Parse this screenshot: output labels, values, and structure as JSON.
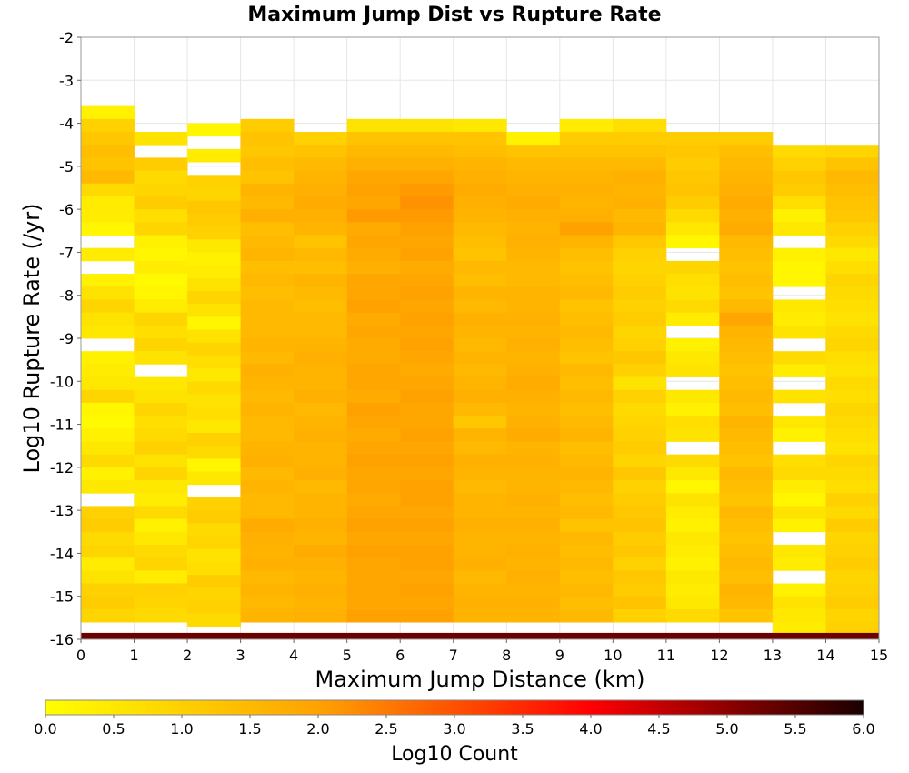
{
  "chart_data": {
    "type": "heatmap",
    "title": "Maximum Jump Dist vs Rupture Rate",
    "xlabel": "Maximum Jump Distance (km)",
    "ylabel": "Log10 Rupture Rate (/yr)",
    "xlim": [
      0,
      15
    ],
    "ylim": [
      -16,
      -2
    ],
    "x_ticks": [
      "0",
      "1",
      "2",
      "3",
      "4",
      "5",
      "6",
      "7",
      "8",
      "9",
      "10",
      "11",
      "12",
      "13",
      "14",
      "15"
    ],
    "y_ticks": [
      "-2",
      "-3",
      "-4",
      "-5",
      "-6",
      "-7",
      "-8",
      "-9",
      "-10",
      "-11",
      "-12",
      "-13",
      "-14",
      "-15",
      "-16"
    ],
    "x_bin_width_km": 1,
    "y_bin_width_log10": 0.3,
    "bin_value_meaning": "log10 count per bin; null = empty bin",
    "bins": [
      {
        "x": 0,
        "top": -3.6,
        "values_from_top": [
          0.3,
          1.0,
          1.2,
          1.4,
          1.3,
          1.5,
          0.8,
          0.4,
          0.4,
          0.2,
          null,
          0.4,
          null,
          0.3,
          0.6,
          0.9,
          0.6,
          0.5,
          null,
          0.3,
          0.4,
          0.5,
          0.9,
          0.2,
          0.1,
          0.3,
          0.5,
          0.8,
          0.3,
          0.5,
          null,
          1.0,
          1.1,
          0.8,
          0.9,
          0.4,
          0.6,
          1.0,
          1.1,
          0.9
        ]
      },
      {
        "x": 1,
        "top": -4.2,
        "values_from_top": [
          0.6,
          null,
          1.1,
          0.8,
          0.9,
          1.1,
          0.7,
          0.9,
          0.3,
          0.2,
          0.4,
          0.1,
          0.2,
          0.4,
          0.9,
          0.7,
          0.9,
          0.6,
          null,
          0.5,
          0.6,
          0.9,
          0.7,
          0.8,
          1.0,
          0.6,
          0.9,
          0.5,
          0.4,
          0.8,
          0.3,
          0.5,
          0.8,
          0.9,
          0.4,
          1.0,
          0.9,
          0.8
        ]
      },
      {
        "x": 2,
        "top": -4.0,
        "values_from_top": [
          0.2,
          null,
          0.4,
          null,
          1.0,
          0.9,
          1.2,
          1.1,
          1.0,
          0.5,
          0.3,
          0.4,
          0.6,
          0.9,
          0.6,
          0.2,
          0.6,
          0.9,
          0.7,
          0.5,
          0.8,
          0.6,
          0.7,
          0.5,
          1.0,
          0.8,
          0.2,
          0.5,
          null,
          1.0,
          1.1,
          0.8,
          0.9,
          0.6,
          0.7,
          1.1,
          0.9,
          1.0,
          0.8
        ]
      },
      {
        "x": 3,
        "top": -3.9,
        "values_from_top": [
          1.1,
          1.3,
          1.2,
          1.4,
          1.3,
          1.6,
          1.5,
          1.7,
          1.4,
          1.5,
          1.6,
          1.4,
          1.5,
          1.4,
          1.5,
          1.5,
          1.5,
          1.6,
          1.5,
          1.7,
          1.6,
          1.5,
          1.6,
          1.5,
          1.5,
          1.6,
          1.7,
          1.5,
          1.6,
          1.5,
          1.5,
          1.8,
          1.7,
          1.6,
          1.7,
          1.5,
          1.6,
          1.5,
          1.6
        ]
      },
      {
        "x": 4,
        "top": -4.2,
        "values_from_top": [
          1.0,
          1.3,
          1.5,
          1.6,
          1.7,
          1.8,
          1.7,
          1.6,
          1.3,
          1.5,
          1.4,
          1.6,
          1.5,
          1.4,
          1.5,
          1.5,
          1.6,
          1.7,
          1.6,
          1.6,
          1.7,
          1.5,
          1.6,
          1.7,
          1.6,
          1.6,
          1.7,
          1.5,
          1.6,
          1.6,
          1.7,
          1.6,
          1.8,
          1.7,
          1.6,
          1.7,
          1.6,
          1.7
        ]
      },
      {
        "x": 5,
        "top": -3.9,
        "values_from_top": [
          0.6,
          1.3,
          1.5,
          1.7,
          1.9,
          2.0,
          1.9,
          2.1,
          1.8,
          1.9,
          1.8,
          1.7,
          1.9,
          1.9,
          2.0,
          1.8,
          1.9,
          1.8,
          1.8,
          1.9,
          1.9,
          1.8,
          2.0,
          1.9,
          1.8,
          1.9,
          2.0,
          1.9,
          1.9,
          1.8,
          1.9,
          2.0,
          1.9,
          2.0,
          1.9,
          1.9,
          1.9,
          1.9,
          2.0
        ]
      },
      {
        "x": 6,
        "top": -3.9,
        "values_from_top": [
          0.6,
          1.3,
          1.5,
          1.7,
          1.9,
          2.1,
          2.2,
          2.1,
          2.0,
          1.9,
          2.0,
          1.8,
          1.9,
          2.0,
          1.9,
          2.0,
          1.9,
          2.0,
          1.9,
          1.8,
          1.9,
          2.0,
          1.9,
          1.9,
          2.0,
          1.9,
          2.0,
          1.9,
          2.0,
          2.0,
          1.9,
          2.0,
          1.9,
          2.0,
          2.0,
          1.9,
          2.0,
          1.9,
          2.0
        ]
      },
      {
        "x": 7,
        "top": -3.9,
        "values_from_top": [
          0.5,
          1.3,
          1.4,
          1.6,
          1.7,
          1.8,
          1.7,
          1.6,
          1.5,
          1.4,
          1.3,
          1.5,
          1.4,
          1.6,
          1.5,
          1.7,
          1.6,
          1.5,
          1.6,
          1.5,
          1.6,
          1.7,
          1.5,
          1.2,
          1.6,
          1.5,
          1.7,
          1.6,
          1.5,
          1.6,
          1.6,
          1.7,
          1.6,
          1.6,
          1.7,
          1.5,
          1.6,
          1.7,
          1.6
        ]
      },
      {
        "x": 8,
        "top": -4.2,
        "values_from_top": [
          0.3,
          1.3,
          1.5,
          1.6,
          1.7,
          1.8,
          1.7,
          1.6,
          1.7,
          1.6,
          1.5,
          1.5,
          1.6,
          1.6,
          1.7,
          1.6,
          1.7,
          1.6,
          1.7,
          1.8,
          1.7,
          1.6,
          1.7,
          1.8,
          1.6,
          1.7,
          1.6,
          1.6,
          1.7,
          1.6,
          1.7,
          1.6,
          1.7,
          1.6,
          1.7,
          1.6,
          1.7,
          1.6
        ]
      },
      {
        "x": 9,
        "top": -3.9,
        "values_from_top": [
          0.4,
          1.1,
          1.3,
          1.5,
          1.6,
          1.7,
          1.6,
          1.7,
          2.0,
          1.6,
          1.4,
          1.3,
          1.4,
          1.5,
          1.3,
          1.4,
          1.5,
          1.4,
          1.3,
          1.5,
          1.4,
          1.5,
          1.4,
          1.5,
          1.6,
          1.4,
          1.5,
          1.6,
          1.5,
          1.4,
          1.5,
          1.3,
          1.5,
          1.4,
          1.5,
          1.4,
          1.5,
          1.4,
          1.5
        ]
      },
      {
        "x": 10,
        "top": -3.9,
        "values_from_top": [
          0.7,
          1.1,
          1.3,
          1.5,
          1.7,
          1.6,
          1.7,
          1.5,
          1.6,
          1.2,
          1.0,
          0.9,
          1.0,
          1.1,
          1.0,
          1.1,
          0.9,
          1.0,
          1.2,
          1.0,
          0.6,
          1.0,
          0.8,
          0.9,
          1.0,
          1.1,
          0.9,
          1.2,
          1.0,
          1.1,
          1.2,
          1.3,
          1.1,
          1.2,
          1.0,
          1.2,
          1.1,
          1.3,
          1.0
        ]
      },
      {
        "x": 11,
        "top": -4.2,
        "values_from_top": [
          1.1,
          1.2,
          1.1,
          1.2,
          1.3,
          1.1,
          0.8,
          0.5,
          0.2,
          null,
          0.9,
          0.7,
          0.6,
          0.8,
          0.4,
          null,
          0.3,
          0.5,
          0.6,
          null,
          0.5,
          0.3,
          0.7,
          0.6,
          null,
          0.8,
          0.5,
          0.2,
          0.6,
          0.4,
          0.3,
          0.5,
          0.4,
          0.3,
          0.5,
          0.4,
          0.5,
          0.8
        ]
      },
      {
        "x": 12,
        "top": -4.2,
        "values_from_top": [
          1.1,
          1.4,
          1.5,
          1.6,
          1.7,
          1.8,
          1.7,
          1.8,
          1.5,
          1.4,
          1.3,
          1.4,
          1.3,
          1.5,
          1.9,
          1.6,
          1.5,
          1.4,
          1.3,
          1.4,
          1.5,
          1.4,
          1.6,
          1.5,
          1.4,
          1.3,
          1.5,
          1.4,
          1.3,
          1.5,
          1.4,
          1.3,
          1.4,
          1.5,
          1.4,
          1.6,
          1.5,
          1.3
        ]
      },
      {
        "x": 13,
        "top": -4.5,
        "values_from_top": [
          0.8,
          1.0,
          1.2,
          1.1,
          0.7,
          0.3,
          0.5,
          null,
          0.3,
          0.2,
          0.2,
          null,
          0.5,
          0.4,
          0.6,
          null,
          0.8,
          0.4,
          null,
          0.6,
          null,
          0.5,
          0.3,
          null,
          0.7,
          0.8,
          0.4,
          0.2,
          0.6,
          0.3,
          null,
          0.5,
          0.4,
          null,
          0.3,
          0.6,
          0.5,
          0.4,
          0.7
        ]
      },
      {
        "x": 14,
        "top": -4.5,
        "values_from_top": [
          0.9,
          1.3,
          1.5,
          1.4,
          1.3,
          1.2,
          1.0,
          0.8,
          0.5,
          0.7,
          0.9,
          0.8,
          0.7,
          0.6,
          0.8,
          0.9,
          0.7,
          0.6,
          0.8,
          0.7,
          0.9,
          0.8,
          0.7,
          0.6,
          0.9,
          0.8,
          0.7,
          1.0,
          0.8,
          1.1,
          0.9,
          1.0,
          1.1,
          0.9,
          1.0,
          1.1,
          0.9,
          1.0,
          1.2
        ]
      }
    ],
    "bottom_row": {
      "y_range": [
        -16.0,
        -15.85
      ],
      "value": 5.3,
      "note": "dark band spanning all x bins"
    },
    "colorbar": {
      "label": "Log10 Count",
      "range": [
        0.0,
        6.0
      ],
      "ticks": [
        "0.0",
        "0.5",
        "1.0",
        "1.5",
        "2.0",
        "2.5",
        "3.0",
        "3.5",
        "4.0",
        "4.5",
        "5.0",
        "5.5",
        "6.0"
      ],
      "colors": [
        "#ffff00",
        "#ffa200",
        "#ff0000",
        "#1a0000"
      ]
    },
    "grid": true,
    "colors": {
      "empty": "#ffffff",
      "grid": "#e6e6e6",
      "frame": "#999999"
    }
  }
}
